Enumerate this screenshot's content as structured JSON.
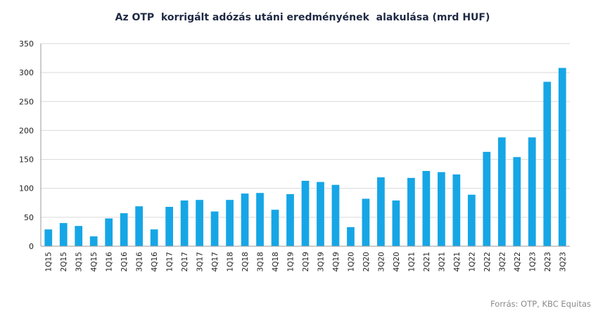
{
  "chart_data": {
    "type": "bar",
    "title": "Az OTP  korrigált adózás utáni eredményének  alakulása (mrd HUF)",
    "xlabel": "",
    "ylabel": "",
    "ylim": [
      0,
      350
    ],
    "yticks": [
      0,
      50,
      100,
      150,
      200,
      250,
      300,
      350
    ],
    "grid": true,
    "bar_color": "#16A6E6",
    "categories": [
      "1Q15",
      "2Q15",
      "3Q15",
      "4Q15",
      "1Q16",
      "2Q16",
      "3Q16",
      "4Q16",
      "1Q17",
      "2Q17",
      "3Q17",
      "4Q17",
      "1Q18",
      "2Q18",
      "3Q18",
      "4Q18",
      "1Q19",
      "2Q19",
      "3Q19",
      "4Q19",
      "1Q20",
      "2Q20",
      "3Q20",
      "4Q20",
      "1Q21",
      "2Q21",
      "3Q21",
      "4Q21",
      "1Q22",
      "2Q22",
      "3Q22",
      "4Q22",
      "1Q23",
      "2Q23",
      "3Q23"
    ],
    "values": [
      29,
      40,
      35,
      17,
      48,
      57,
      69,
      29,
      68,
      79,
      80,
      60,
      80,
      91,
      92,
      63,
      90,
      113,
      111,
      106,
      33,
      82,
      119,
      79,
      118,
      130,
      128,
      124,
      89,
      163,
      188,
      154,
      188,
      284,
      308
    ]
  },
  "source": "Forrás: OTP, KBC Equitas"
}
